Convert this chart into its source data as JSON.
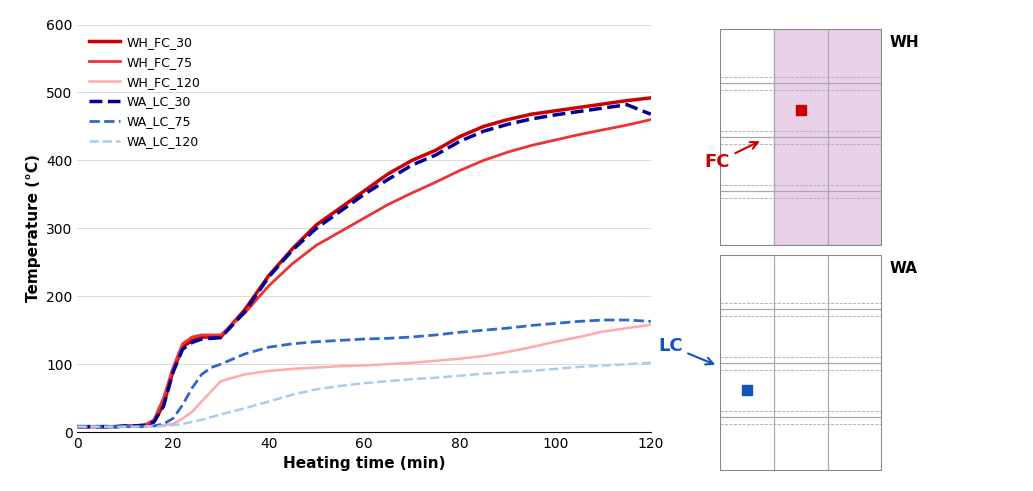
{
  "xlabel": "Heating time (min)",
  "ylabel": "Temperature (°C)",
  "xlim": [
    0,
    120
  ],
  "ylim": [
    0,
    600
  ],
  "xticks": [
    0,
    20,
    40,
    60,
    80,
    100,
    120
  ],
  "yticks": [
    0,
    100,
    200,
    300,
    400,
    500,
    600
  ],
  "series": {
    "WH_FC_30": {
      "color": "#cc0000",
      "linewidth": 2.5,
      "linestyle": "solid",
      "x": [
        0,
        2,
        4,
        6,
        8,
        10,
        12,
        14,
        16,
        18,
        20,
        22,
        24,
        26,
        28,
        30,
        35,
        40,
        45,
        50,
        55,
        60,
        65,
        70,
        75,
        80,
        85,
        90,
        95,
        100,
        105,
        110,
        115,
        120
      ],
      "y": [
        8,
        8,
        8,
        8,
        8,
        9,
        9,
        10,
        15,
        40,
        90,
        125,
        135,
        140,
        140,
        140,
        180,
        230,
        270,
        305,
        330,
        355,
        380,
        400,
        415,
        435,
        450,
        460,
        468,
        473,
        478,
        483,
        488,
        492
      ]
    },
    "WH_FC_75": {
      "color": "#ee3333",
      "linewidth": 2.0,
      "linestyle": "solid",
      "x": [
        0,
        2,
        4,
        6,
        8,
        10,
        12,
        14,
        16,
        18,
        20,
        22,
        24,
        26,
        28,
        30,
        35,
        40,
        45,
        50,
        55,
        60,
        65,
        70,
        75,
        80,
        85,
        90,
        95,
        100,
        105,
        110,
        115,
        120
      ],
      "y": [
        8,
        8,
        8,
        8,
        8,
        9,
        9,
        10,
        18,
        50,
        95,
        130,
        140,
        143,
        143,
        143,
        175,
        215,
        248,
        275,
        295,
        315,
        335,
        352,
        368,
        385,
        400,
        412,
        422,
        430,
        438,
        445,
        452,
        460
      ]
    },
    "WH_FC_120": {
      "color": "#ffaaaa",
      "linewidth": 1.8,
      "linestyle": "solid",
      "x": [
        0,
        2,
        4,
        6,
        8,
        10,
        12,
        14,
        16,
        18,
        20,
        22,
        24,
        26,
        28,
        30,
        35,
        40,
        45,
        50,
        55,
        60,
        65,
        70,
        75,
        80,
        85,
        90,
        95,
        100,
        105,
        110,
        115,
        120
      ],
      "y": [
        8,
        8,
        8,
        8,
        8,
        8,
        8,
        8,
        9,
        10,
        12,
        20,
        30,
        45,
        60,
        75,
        85,
        90,
        93,
        95,
        97,
        98,
        100,
        102,
        105,
        108,
        112,
        118,
        125,
        133,
        140,
        148,
        153,
        158
      ]
    },
    "WA_LC_30": {
      "color": "#000099",
      "linewidth": 2.5,
      "linestyle": "dashed",
      "x": [
        0,
        2,
        4,
        6,
        8,
        10,
        12,
        14,
        16,
        18,
        20,
        22,
        24,
        26,
        28,
        30,
        35,
        40,
        45,
        50,
        55,
        60,
        65,
        70,
        75,
        80,
        85,
        90,
        95,
        100,
        105,
        110,
        115,
        120
      ],
      "y": [
        8,
        8,
        8,
        8,
        8,
        9,
        9,
        10,
        15,
        38,
        88,
        122,
        132,
        137,
        138,
        139,
        177,
        228,
        268,
        300,
        325,
        350,
        372,
        393,
        408,
        428,
        443,
        453,
        461,
        467,
        472,
        477,
        482,
        468
      ]
    },
    "WA_LC_75": {
      "color": "#3366cc",
      "linewidth": 2.0,
      "linestyle": "dashed",
      "x": [
        0,
        2,
        4,
        6,
        8,
        10,
        12,
        14,
        16,
        18,
        20,
        22,
        24,
        26,
        28,
        30,
        35,
        40,
        45,
        50,
        55,
        60,
        65,
        70,
        75,
        80,
        85,
        90,
        95,
        100,
        105,
        110,
        115,
        120
      ],
      "y": [
        8,
        8,
        8,
        8,
        8,
        8,
        8,
        8,
        9,
        12,
        20,
        40,
        65,
        85,
        95,
        100,
        115,
        125,
        130,
        133,
        135,
        137,
        138,
        140,
        143,
        147,
        150,
        153,
        157,
        160,
        163,
        165,
        165,
        163
      ]
    },
    "WA_LC_120": {
      "color": "#aaccee",
      "linewidth": 1.8,
      "linestyle": "dashed",
      "x": [
        0,
        2,
        4,
        6,
        8,
        10,
        12,
        14,
        16,
        18,
        20,
        22,
        24,
        26,
        28,
        30,
        35,
        40,
        45,
        50,
        55,
        60,
        65,
        70,
        75,
        80,
        85,
        90,
        95,
        100,
        105,
        110,
        115,
        120
      ],
      "y": [
        8,
        8,
        8,
        8,
        8,
        8,
        8,
        8,
        8,
        9,
        10,
        12,
        15,
        18,
        22,
        26,
        35,
        45,
        55,
        63,
        68,
        72,
        75,
        78,
        80,
        83,
        86,
        88,
        90,
        93,
        96,
        98,
        100,
        102
      ]
    }
  },
  "legend_order": [
    "WH_FC_30",
    "WH_FC_75",
    "WH_FC_120",
    "WA_LC_30",
    "WA_LC_75",
    "WA_LC_120"
  ],
  "wh_shade_color": "#e8d0e8",
  "wh_fc_dot_color": "#cc0000",
  "wa_lc_dot_color": "#1155bb",
  "grid_color": "#aaaaaa",
  "fc_label_color": "#cc0000",
  "lc_label_color": "#1155bb"
}
